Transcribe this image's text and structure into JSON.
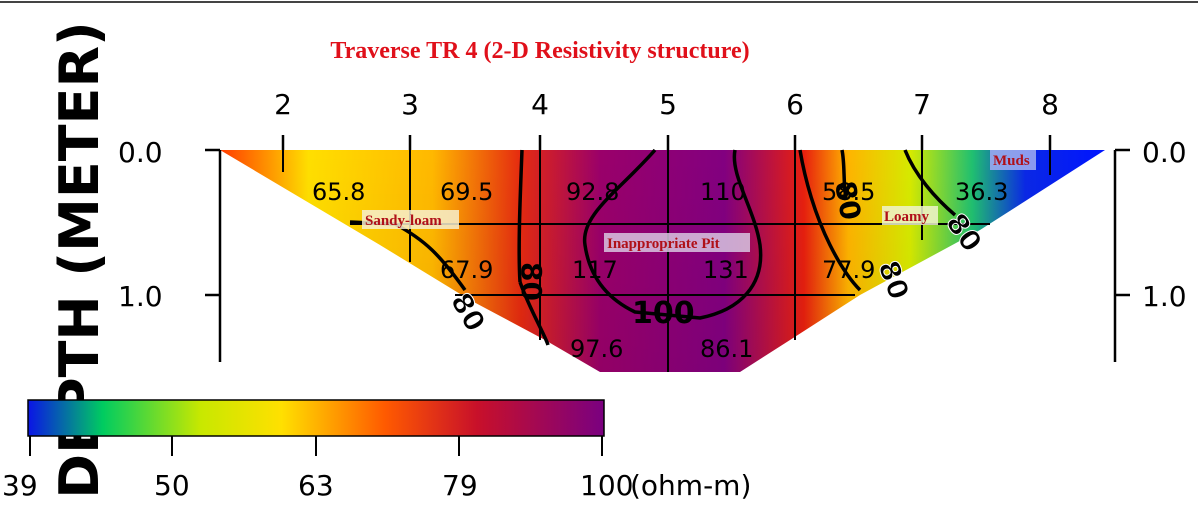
{
  "title": "Traverse TR 4 (2-D Resistivity structure)",
  "y_axis_label": "DEPTH (METER)",
  "x_ticks": [
    "2",
    "3",
    "4",
    "5",
    "6",
    "7",
    "8"
  ],
  "y_ticks_left": [
    "0.0",
    "1.0"
  ],
  "y_ticks_right": [
    "0.0",
    "1.0"
  ],
  "cell_values": [
    "65.8",
    "69.5",
    "92.8",
    "110",
    "58.5",
    "36.3",
    "67.9",
    "117",
    "131",
    "77.9",
    "97.6",
    "86.1"
  ],
  "contour_labels": [
    "80",
    "80",
    "100",
    "80",
    "80",
    "80"
  ],
  "annotations": {
    "sandy_loam": "Sandy-loam",
    "pit": "Inappropriate  Pit",
    "loamy": "Loamy",
    "muds": "Muds"
  },
  "colorbar": {
    "labels": [
      "39",
      "50",
      "63",
      "79",
      "100"
    ],
    "unit": "(ohm-m)",
    "colors": [
      "#0a14e6",
      "#00cc60",
      "#c8e800",
      "#ffe000",
      "#ff5a00",
      "#c8102a",
      "#7a0080"
    ]
  }
}
